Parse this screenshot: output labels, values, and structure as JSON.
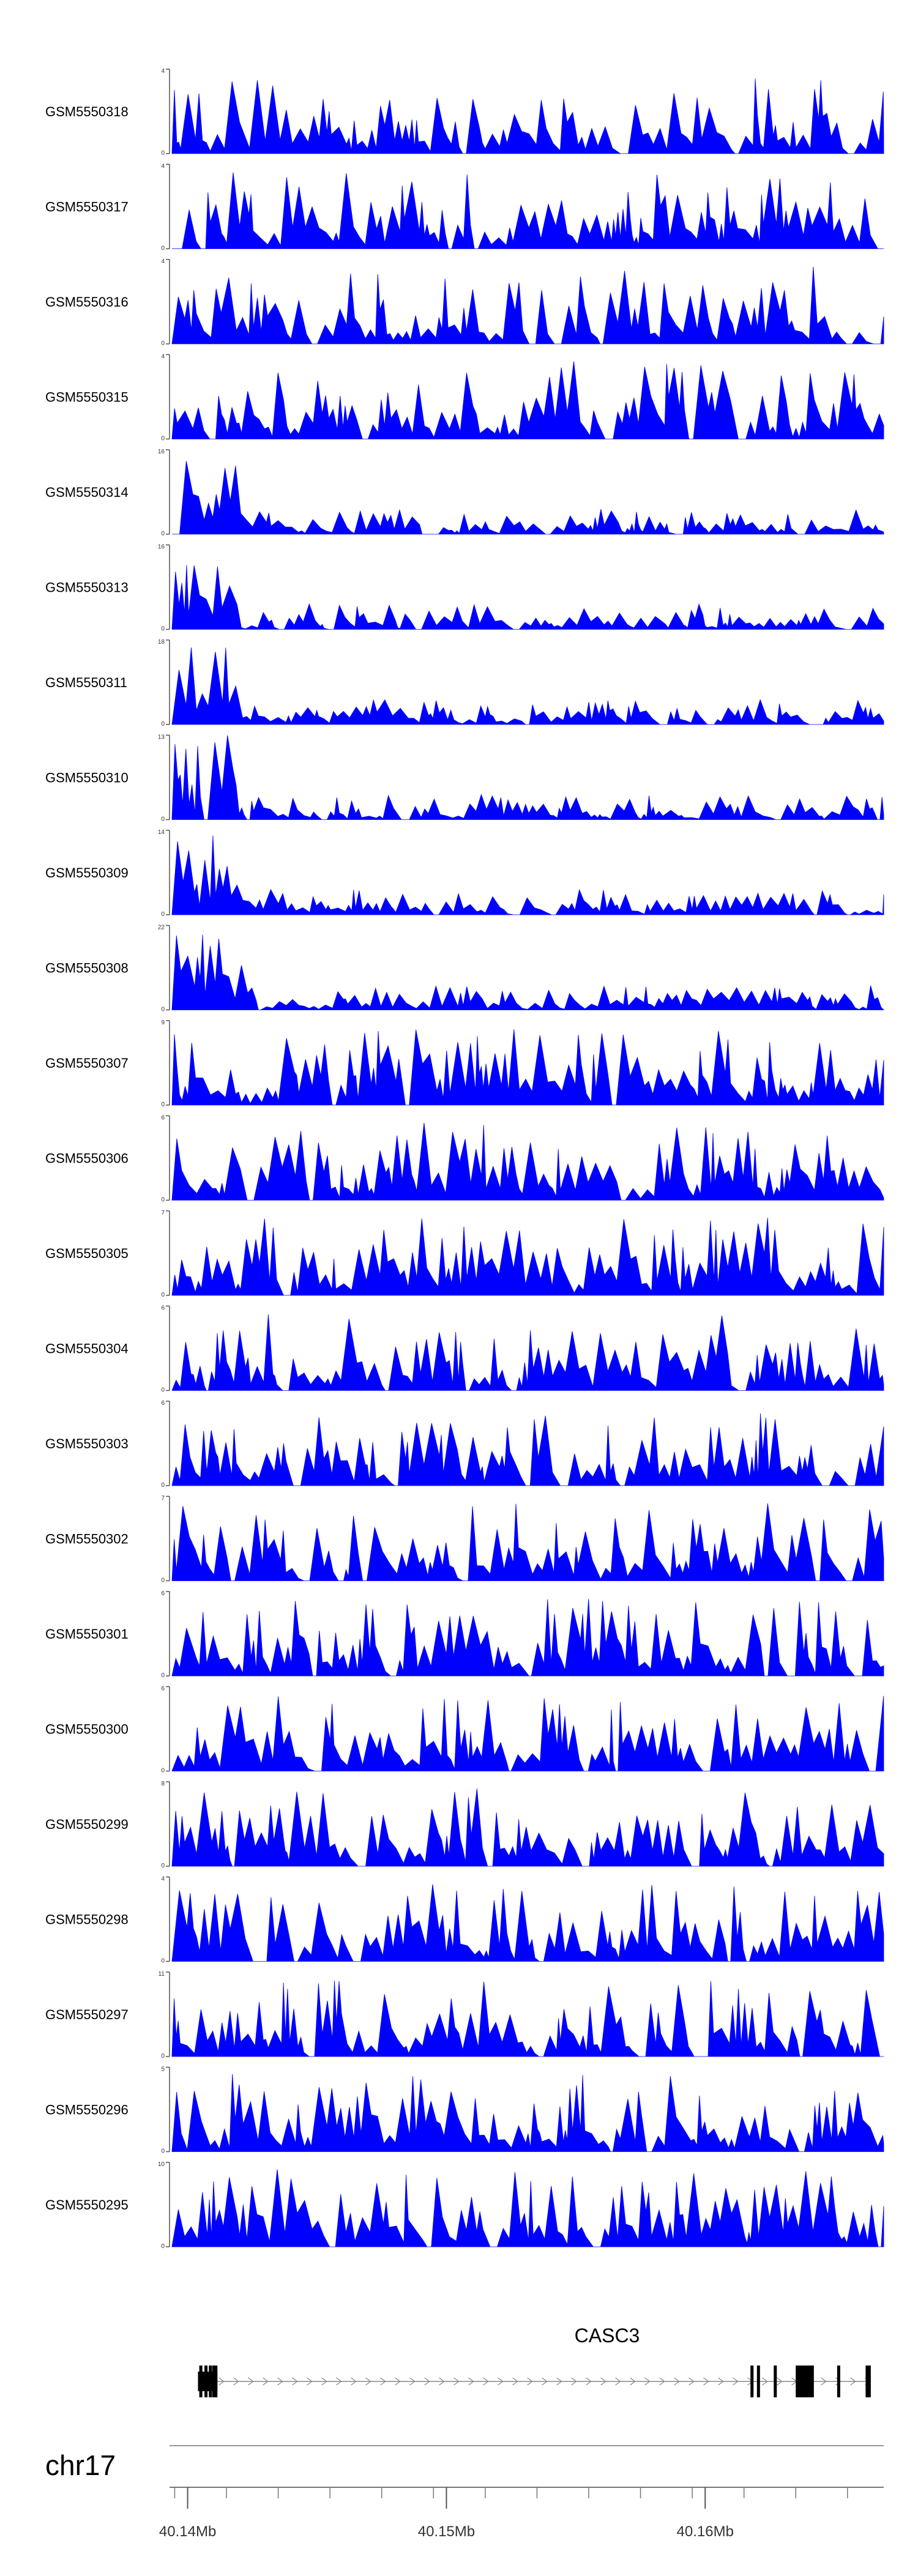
{
  "chart_data": {
    "type": "area",
    "tracks": [
      {
        "name": "GSM5550318",
        "ymax": "4"
      },
      {
        "name": "GSM5550317",
        "ymax": "4"
      },
      {
        "name": "GSM5550316",
        "ymax": "4"
      },
      {
        "name": "GSM5550315",
        "ymax": "4"
      },
      {
        "name": "GSM5550314",
        "ymax": "16"
      },
      {
        "name": "GSM5550313",
        "ymax": "16"
      },
      {
        "name": "GSM5550311",
        "ymax": "18"
      },
      {
        "name": "GSM5550310",
        "ymax": "13"
      },
      {
        "name": "GSM5550309",
        "ymax": "14"
      },
      {
        "name": "GSM5550308",
        "ymax": "22"
      },
      {
        "name": "GSM5550307",
        "ymax": "9"
      },
      {
        "name": "GSM5550306",
        "ymax": "6"
      },
      {
        "name": "GSM5550305",
        "ymax": "7"
      },
      {
        "name": "GSM5550304",
        "ymax": "6"
      },
      {
        "name": "GSM5550303",
        "ymax": "6"
      },
      {
        "name": "GSM5550302",
        "ymax": "7"
      },
      {
        "name": "GSM5550301",
        "ymax": "6"
      },
      {
        "name": "GSM5550300",
        "ymax": "6"
      },
      {
        "name": "GSM5550299",
        "ymax": "8"
      },
      {
        "name": "GSM5550298",
        "ymax": "4"
      },
      {
        "name": "GSM5550297",
        "ymax": "11"
      },
      {
        "name": "GSM5550296",
        "ymax": "5"
      },
      {
        "name": "GSM5550295",
        "ymax": "10"
      }
    ],
    "ymin_label": "0",
    "gene": {
      "name": "CASC3",
      "exons": [
        [
          40.14045,
          40.14055
        ],
        [
          40.14065,
          40.14075
        ],
        [
          40.14082,
          40.1409
        ],
        [
          40.14095,
          40.14115
        ],
        [
          40.16175,
          40.16185
        ],
        [
          40.162,
          40.16208
        ],
        [
          40.16265,
          40.16275
        ],
        [
          40.1635,
          40.1642
        ],
        [
          40.1651,
          40.16515
        ],
        [
          40.1662,
          40.1664
        ]
      ]
    },
    "chromosome": "chr17",
    "x_range": [
      40.1393,
      40.1669
    ],
    "x_ticks": [
      40.14,
      40.15,
      40.16
    ],
    "x_tick_labels": [
      "40.14Mb",
      "40.15Mb",
      "40.16Mb"
    ],
    "color": "#0000ff"
  }
}
